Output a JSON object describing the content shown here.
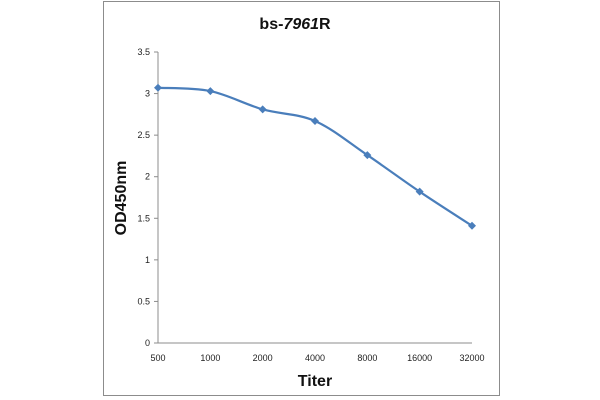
{
  "chart_data": {
    "type": "line",
    "title": {
      "prefix": "bs-",
      "number": "7961",
      "suffix": "R"
    },
    "xlabel": "Titer",
    "ylabel": "OD450nm",
    "categories": [
      "500",
      "1000",
      "2000",
      "4000",
      "8000",
      "16000",
      "32000"
    ],
    "series": [
      {
        "values": [
          3.07,
          3.03,
          2.81,
          2.67,
          2.26,
          1.82,
          1.41
        ],
        "color": "#4a7ebb",
        "marker": "diamond"
      }
    ],
    "ylim": [
      0,
      3.5
    ],
    "yticks": [
      "0",
      "0.5",
      "1",
      "1.5",
      "2",
      "2.5",
      "3",
      "3.5"
    ],
    "grid": false,
    "legend": "none",
    "smooth": true
  }
}
